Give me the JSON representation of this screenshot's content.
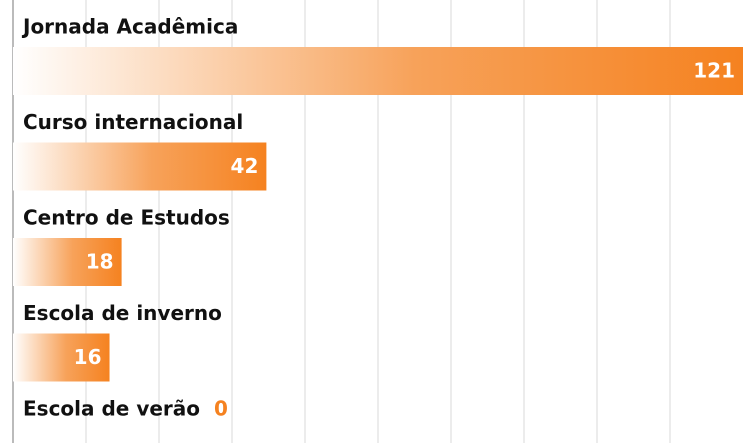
{
  "chart_data": {
    "type": "bar",
    "orientation": "horizontal",
    "categories": [
      "Jornada Acadêmica",
      "Curso internacional",
      "Centro de Estudos",
      "Escola de inverno",
      "Escola de verão"
    ],
    "values": [
      121,
      42,
      18,
      16,
      0
    ],
    "color": "#f58220",
    "xlim": [
      0,
      121
    ],
    "xticks": [
      0,
      12.1,
      24.2,
      36.3,
      48.4,
      60.5,
      72.6,
      84.7,
      96.8,
      108.9,
      121
    ],
    "grid": true
  }
}
